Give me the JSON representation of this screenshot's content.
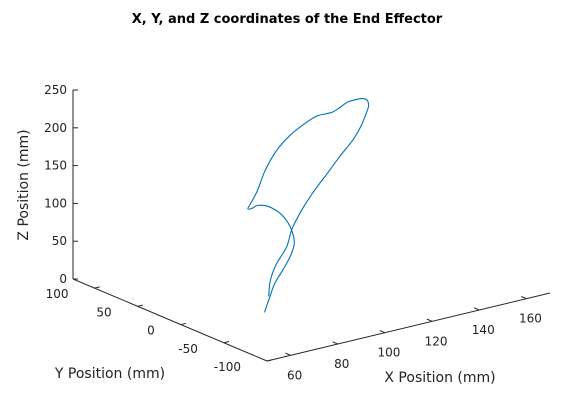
{
  "chart_data": {
    "type": "line",
    "projection": "3d",
    "title": "X, Y, and Z coordinates of the End Effector",
    "xlabel": "X Position (mm)",
    "ylabel": "Y Position (mm)",
    "zlabel": "Z Position (mm)",
    "xlim": [
      50,
      170
    ],
    "ylim": [
      -100,
      125
    ],
    "zlim": [
      0,
      250
    ],
    "xticks": [
      60,
      80,
      100,
      120,
      140,
      160
    ],
    "yticks": [
      -100,
      -50,
      0,
      50,
      100
    ],
    "zticks": [
      0,
      50,
      100,
      150,
      200,
      250
    ],
    "grid": false,
    "series": [
      {
        "color": "#0072bd",
        "points": [
          [
            80,
            -20,
            25
          ],
          [
            88,
            0,
            30
          ],
          [
            96,
            15,
            38
          ],
          [
            104,
            25,
            50
          ],
          [
            110,
            35,
            65
          ],
          [
            116,
            40,
            83
          ],
          [
            122,
            42,
            103
          ],
          [
            127,
            40,
            124
          ],
          [
            131,
            36,
            146
          ],
          [
            134,
            30,
            167
          ],
          [
            135,
            24,
            186
          ],
          [
            135,
            18,
            205
          ],
          [
            134,
            12,
            220
          ],
          [
            131,
            5,
            233
          ],
          [
            127,
            -2,
            242
          ],
          [
            122,
            -8,
            248
          ],
          [
            116,
            -13,
            251
          ],
          [
            111,
            -17,
            249
          ],
          [
            107,
            -20,
            248
          ],
          [
            103,
            -23,
            250
          ],
          [
            98,
            -27,
            253
          ],
          [
            92,
            -31,
            251
          ],
          [
            84,
            -35,
            243
          ],
          [
            76,
            -40,
            230
          ],
          [
            69,
            -46,
            212
          ],
          [
            63,
            -53,
            192
          ],
          [
            58,
            -58,
            180
          ],
          [
            58,
            -56,
            174
          ],
          [
            62,
            -50,
            169
          ],
          [
            67,
            -42,
            165
          ],
          [
            73,
            -35,
            157
          ],
          [
            79,
            -27,
            145
          ],
          [
            85,
            -20,
            130
          ],
          [
            90,
            -15,
            112
          ],
          [
            93,
            -12,
            95
          ],
          [
            93,
            -14,
            82
          ],
          [
            90,
            -18,
            70
          ],
          [
            85,
            -23,
            58
          ],
          [
            80,
            -27,
            45
          ],
          [
            76,
            -32,
            32
          ],
          [
            72,
            -37,
            18
          ]
        ]
      }
    ]
  }
}
